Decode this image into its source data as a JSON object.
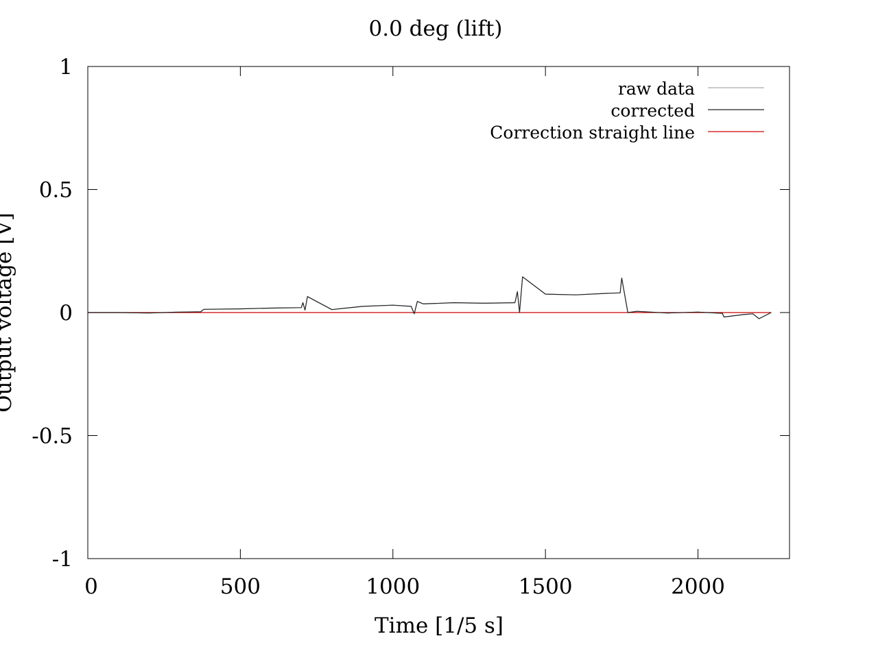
{
  "chart_data": {
    "type": "line",
    "title": "0.0 deg (lift)",
    "xlabel": "Time [1/5 s]",
    "ylabel": "Output voltage [V]",
    "xlim": [
      0,
      2300
    ],
    "ylim": [
      -1,
      1
    ],
    "xticks": [
      0,
      500,
      1000,
      1500,
      2000
    ],
    "yticks": [
      -1,
      -0.5,
      0,
      0.5,
      1
    ],
    "xtick_labels": [
      "0",
      "500",
      "1000",
      "1500",
      "2000"
    ],
    "ytick_labels": [
      "-1",
      "-0.5",
      "0",
      "0.5",
      "1"
    ],
    "grid": false,
    "legend_position": "top-right",
    "series": [
      {
        "name": "raw data",
        "color": "#aaaaaa",
        "x": [
          0,
          100,
          200,
          300,
          370,
          380,
          500,
          600,
          700,
          705,
          712,
          720,
          800,
          900,
          1000,
          1060,
          1070,
          1080,
          1100,
          1200,
          1300,
          1400,
          1408,
          1415,
          1425,
          1500,
          1600,
          1700,
          1745,
          1750,
          1770,
          1800,
          1900,
          2000,
          2080,
          2085,
          2150,
          2180,
          2200,
          2240
        ],
        "y": [
          0.0,
          0.0,
          -0.002,
          0.002,
          0.003,
          0.013,
          0.015,
          0.018,
          0.02,
          0.04,
          0.01,
          0.065,
          0.012,
          0.025,
          0.03,
          0.025,
          -0.005,
          0.045,
          0.035,
          0.04,
          0.038,
          0.04,
          0.085,
          0.0,
          0.145,
          0.075,
          0.072,
          0.078,
          0.08,
          0.14,
          0.0,
          0.005,
          -0.002,
          0.002,
          -0.003,
          -0.018,
          -0.008,
          -0.005,
          -0.025,
          0.0
        ]
      },
      {
        "name": "corrected",
        "color": "#222222",
        "x": [
          0,
          100,
          200,
          300,
          370,
          380,
          500,
          600,
          700,
          705,
          712,
          720,
          800,
          900,
          1000,
          1060,
          1070,
          1080,
          1100,
          1200,
          1300,
          1400,
          1408,
          1415,
          1425,
          1500,
          1600,
          1700,
          1745,
          1750,
          1770,
          1800,
          1900,
          2000,
          2080,
          2085,
          2150,
          2180,
          2200,
          2240
        ],
        "y": [
          0.0,
          0.0,
          -0.002,
          0.002,
          0.003,
          0.013,
          0.015,
          0.018,
          0.02,
          0.04,
          0.01,
          0.065,
          0.012,
          0.025,
          0.03,
          0.025,
          -0.005,
          0.045,
          0.035,
          0.04,
          0.038,
          0.04,
          0.085,
          0.0,
          0.145,
          0.075,
          0.072,
          0.078,
          0.08,
          0.14,
          0.0,
          0.005,
          -0.002,
          0.002,
          -0.003,
          -0.018,
          -0.008,
          -0.005,
          -0.025,
          0.0
        ]
      },
      {
        "name": "Correction straight line",
        "color": "#cc0000",
        "x": [
          0,
          2240
        ],
        "y": [
          0.0,
          0.0
        ]
      }
    ]
  }
}
